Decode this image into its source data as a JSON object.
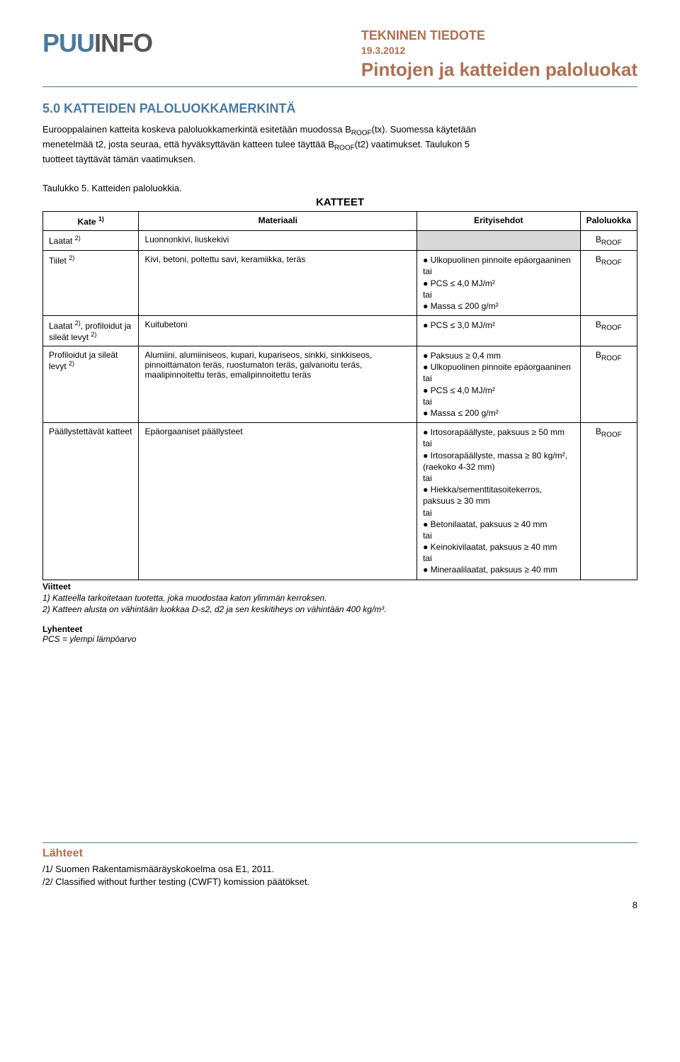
{
  "header": {
    "logo_puu": "PUU",
    "logo_info": "INFO",
    "tekninen_tiedote": "TEKNINEN TIEDOTE",
    "date": "19.3.2012",
    "page_title": "Pintojen ja katteiden paloluokat"
  },
  "section_title": "5.0 KATTEIDEN PALOLUOKKAMERKINTÄ",
  "paragraph": "Eurooppalainen katteita koskeva paloluokkamerkintä esitetään muodossa BROOF(tx). Suomessa käytetään menetelmää t2, josta seuraa, että hyväksyttävän katteen tulee täyttää BROOF(t2) vaatimukset. Taulukon 5 tuotteet täyttävät tämän vaatimuksen.",
  "table_caption": "Taulukko 5. Katteiden paloluokkia.",
  "table_title": "KATTEET",
  "table": {
    "headers": {
      "kate": "Kate",
      "kate_sup": "1)",
      "materiaali": "Materiaali",
      "erityisehdot": "Erityisehdot",
      "paloluokka": "Paloluokka"
    },
    "rows": [
      {
        "kate": "Laatat",
        "kate_sup": "2)",
        "materiaali": "Luonnonkivi, liuskekivi",
        "erityisehdot": "",
        "paloluokka": "BROOF",
        "shade": true
      },
      {
        "kate": "Tiilet",
        "kate_sup": "2)",
        "materiaali": "Kivi, betoni, poltettu savi, keramiikka, teräs",
        "erityisehdot": "● Ulkopuolinen pinnoite epäorgaaninen\ntai\n● PCS ≤ 4,0 MJ/m²\ntai\n● Massa ≤ 200 g/m²",
        "paloluokka": "BROOF"
      },
      {
        "kate": "Laatat 2), profiloidut ja sileät levyt",
        "kate_sup": "2)",
        "kate_raw": "Laatat ²⁾, profiloidut ja sileät levyt ²⁾",
        "materiaali": "Kuitubetoni",
        "erityisehdot": "● PCS ≤ 3,0 MJ/m²",
        "paloluokka": "BROOF"
      },
      {
        "kate": "Profiloidut ja sileät levyt",
        "kate_sup": "2)",
        "materiaali": "Alumiini, alumiiniseos, kupari, kupariseos, sinkki, sinkkiseos, pinnoittamaton teräs, ruostumaton teräs, galvanoitu teräs, maalipinnoitettu teräs, emalipinnoitettu teräs",
        "erityisehdot": "● Paksuus ≥ 0,4 mm\n● Ulkopuolinen pinnoite epäorgaaninen\ntai\n● PCS ≤ 4,0 MJ/m²\ntai\n● Massa ≤ 200 g/m²",
        "paloluokka": "BROOF"
      },
      {
        "kate": "Päällystettävät katteet",
        "kate_sup": "",
        "materiaali": "Epäorgaaniset päällysteet",
        "erityisehdot": "● Irtosorapäällyste, paksuus ≥ 50 mm\ntai\n● Irtosorapäällyste, massa ≥ 80 kg/m², (raekoko 4-32 mm)\ntai\n● Hiekka/sementtitasoitekerros, paksuus ≥ 30 mm\ntai\n● Betonilaatat, paksuus ≥ 40 mm\ntai\n● Keinokivilaatat, paksuus ≥ 40 mm\ntai\n● Mineraalilaatat, paksuus ≥ 40 mm",
        "paloluokka": "BROOF"
      }
    ]
  },
  "footnotes": {
    "header": "Viitteet",
    "f1": "1) Katteella tarkoitetaan tuotetta, joka muodostaa katon ylimmän kerroksen.",
    "f2": "2) Katteen alusta on vähintään luokkaa D-s2, d2 ja sen keskitiheys on vähintään 400 kg/m³."
  },
  "lyhenteet": {
    "header": "Lyhenteet",
    "pcs": "PCS = ylempi lämpöarvo"
  },
  "lahteet": {
    "title": "Lähteet",
    "l1": "/1/ Suomen Rakentamismääräyskokoelma osa E1, 2011.",
    "l2": "/2/ Classified without further testing (CWFT) komission päätökset."
  },
  "page_num": "8"
}
